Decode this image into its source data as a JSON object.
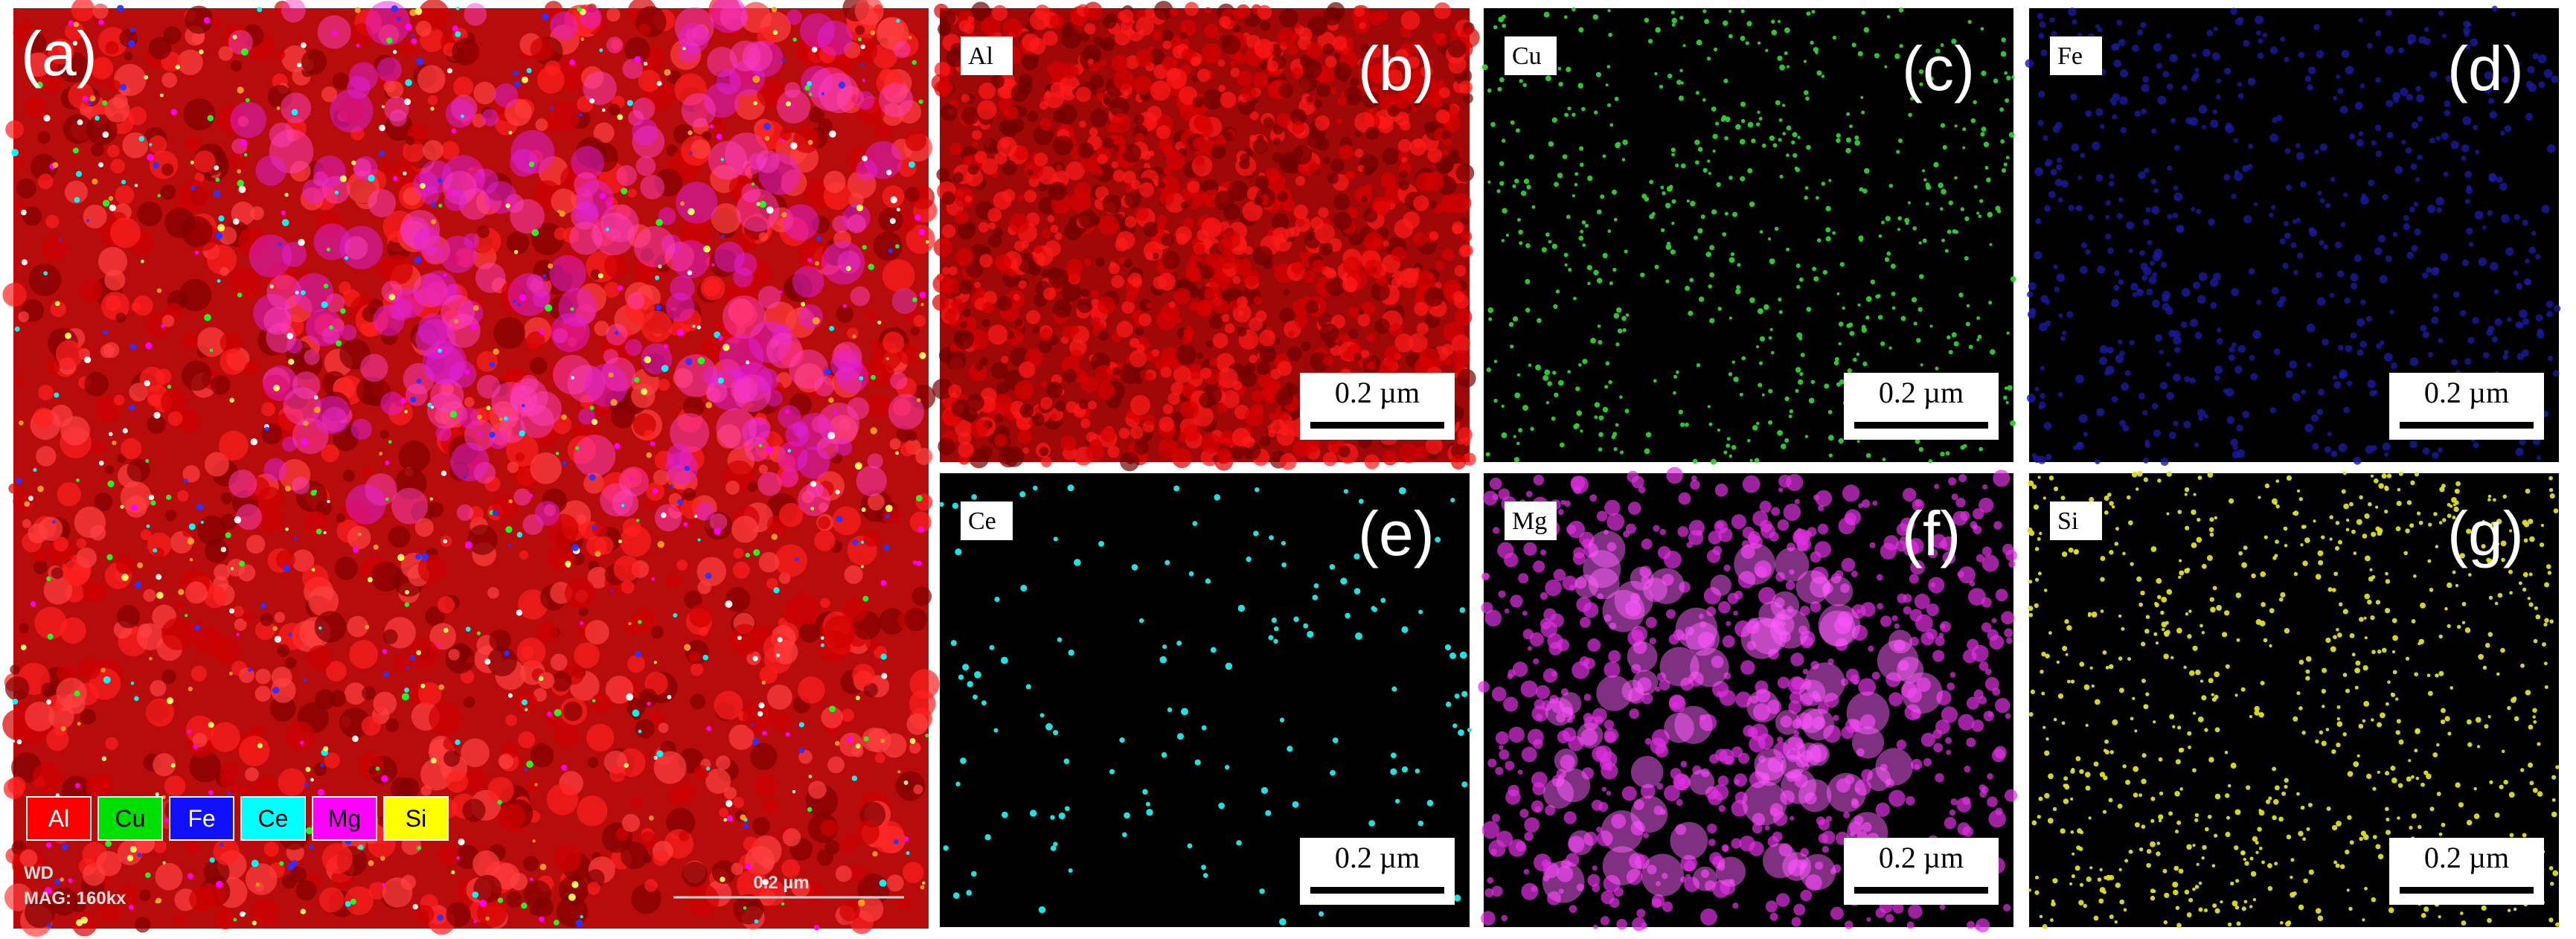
{
  "overview": {
    "label": "(a)",
    "legend": [
      {
        "name": "Al",
        "color": "#ff0000"
      },
      {
        "name": "Cu",
        "color": "#00e000"
      },
      {
        "name": "Fe",
        "color": "#1010ff"
      },
      {
        "name": "Ce",
        "color": "#00ffff"
      },
      {
        "name": "Mg",
        "color": "#ff00ff"
      },
      {
        "name": "Si",
        "color": "#ffff00"
      }
    ],
    "info": [
      "WD",
      "MAG: 160kx"
    ],
    "scale_bar": "0.2 µm"
  },
  "panels": [
    {
      "label": "(b)",
      "element": "Al",
      "color": "#e01010",
      "scale_bar": "0.2 µm"
    },
    {
      "label": "(c)",
      "element": "Cu",
      "color": "#30d030",
      "scale_bar": "0.2 µm"
    },
    {
      "label": "(d)",
      "element": "Fe",
      "color": "#1a1aa0",
      "scale_bar": "0.2 µm"
    },
    {
      "label": "(e)",
      "element": "Ce",
      "color": "#20e0e0",
      "scale_bar": "0.2 µm"
    },
    {
      "label": "(f)",
      "element": "Mg",
      "color": "#e030e0",
      "scale_bar": "0.2 µm"
    },
    {
      "label": "(g)",
      "element": "Si",
      "color": "#e0e020",
      "scale_bar": "0.2 µm"
    }
  ]
}
